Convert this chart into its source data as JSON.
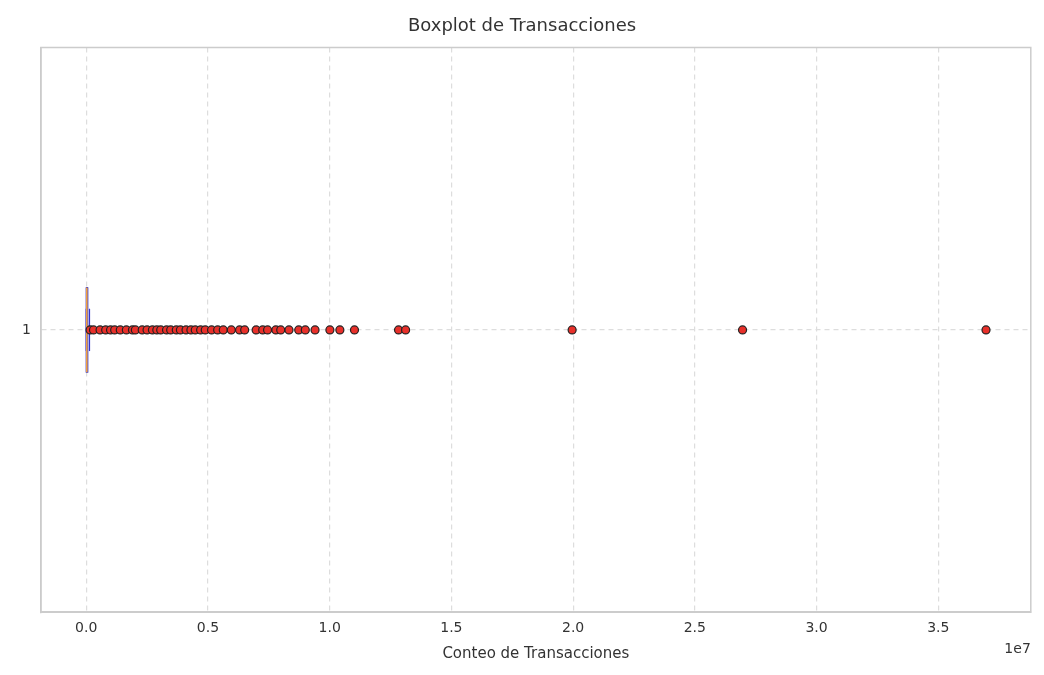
{
  "chart_data": {
    "type": "box",
    "title": "Boxplot de Transacciones",
    "xlabel": "Conteo de Transacciones",
    "orientation": "horizontal",
    "categories": [
      "1"
    ],
    "series": [
      {
        "type": "box",
        "color": "#3333cc",
        "boxes": [
          {
            "low": 0,
            "q1": 0,
            "median": 0.002,
            "q3": 0.006,
            "high": 0.014,
            "outliers": [
              0.016,
              0.03,
              0.057,
              0.08,
              0.1,
              0.117,
              0.14,
              0.165,
              0.19,
              0.202,
              0.23,
              0.25,
              0.272,
              0.29,
              0.306,
              0.33,
              0.347,
              0.37,
              0.387,
              0.41,
              0.43,
              0.448,
              0.47,
              0.489,
              0.515,
              0.54,
              0.563,
              0.596,
              0.63,
              0.651,
              0.698,
              0.725,
              0.745,
              0.779,
              0.799,
              0.833,
              0.873,
              0.9,
              0.94,
              1.001,
              1.042,
              1.102,
              1.283,
              1.312,
              1.996,
              2.696,
              3.696
            ]
          }
        ]
      }
    ],
    "xlim": [
      -0.186,
      3.88
    ],
    "xticks": [
      {
        "value": 0,
        "label": "0.0"
      },
      {
        "value": 0.5,
        "label": "0.5"
      },
      {
        "value": 1,
        "label": "1.0"
      },
      {
        "value": 1.5,
        "label": "1.5"
      },
      {
        "value": 2,
        "label": "2.0"
      },
      {
        "value": 2.5,
        "label": "2.5"
      },
      {
        "value": 3,
        "label": "3.0"
      },
      {
        "value": 3.5,
        "label": "3.5"
      }
    ],
    "grid": true,
    "line_style": "dashed",
    "marker": "circle",
    "legend": false,
    "annotations": [
      "1e7"
    ]
  }
}
